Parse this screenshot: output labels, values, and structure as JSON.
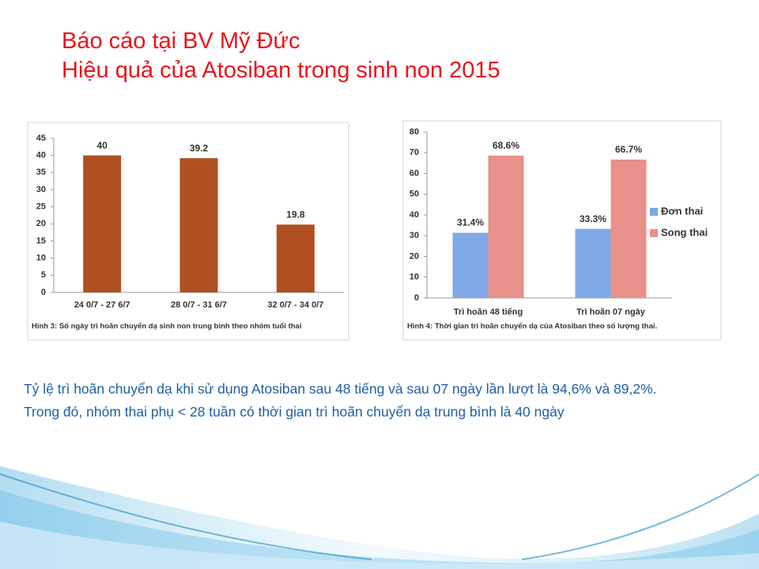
{
  "slide": {
    "title_lines": [
      "Báo cáo tại BV Mỹ Đức",
      "Hiệu quả của Atosiban trong sinh non 2015"
    ],
    "body": [
      "Tỷ lệ trì hoãn chuyển dạ khi sử dụng Atosiban sau 48 tiếng và sau 07 ngày lần lượt là 94,6% và 89,2%.",
      "Trong đó, nhóm thai phụ < 28 tuần có thời gian trì hoãn chuyển dạ trung bình là 40 ngày"
    ]
  },
  "chart_data": [
    {
      "type": "bar",
      "caption": "Hình 3: Số ngày trì hoãn chuyển dạ sinh non trung bình theo nhóm tuổi thai",
      "categories": [
        "24 0/7 - 27 6/7",
        "28 0/7 - 31 6/7",
        "32 0/7 - 34 0/7"
      ],
      "values": [
        40,
        39.2,
        19.8
      ],
      "color": "#b04f22",
      "ylim": [
        0,
        45
      ],
      "yticks": [
        0,
        5,
        10,
        15,
        20,
        25,
        30,
        35,
        40,
        45
      ],
      "grid": false
    },
    {
      "type": "bar",
      "caption": "Hình 4: Thời gian trì hoãn chuyển dạ của Atosiban theo số lượng thai.",
      "categories": [
        "Trì hoãn 48 tiếng",
        "Trì hoãn 07 ngày"
      ],
      "series": [
        {
          "name": "Đơn thai",
          "color": "#7fa8e6",
          "values": [
            31.4,
            33.3
          ],
          "value_labels": [
            "31.4%",
            "33.3%"
          ]
        },
        {
          "name": "Song thai",
          "color": "#e8908a",
          "values": [
            68.6,
            66.7
          ],
          "value_labels": [
            "68.6%",
            "66.7%"
          ]
        }
      ],
      "ylim": [
        0,
        80
      ],
      "yticks": [
        0,
        10,
        20,
        30,
        40,
        50,
        60,
        70,
        80
      ],
      "grid": false,
      "legend": "right"
    }
  ]
}
